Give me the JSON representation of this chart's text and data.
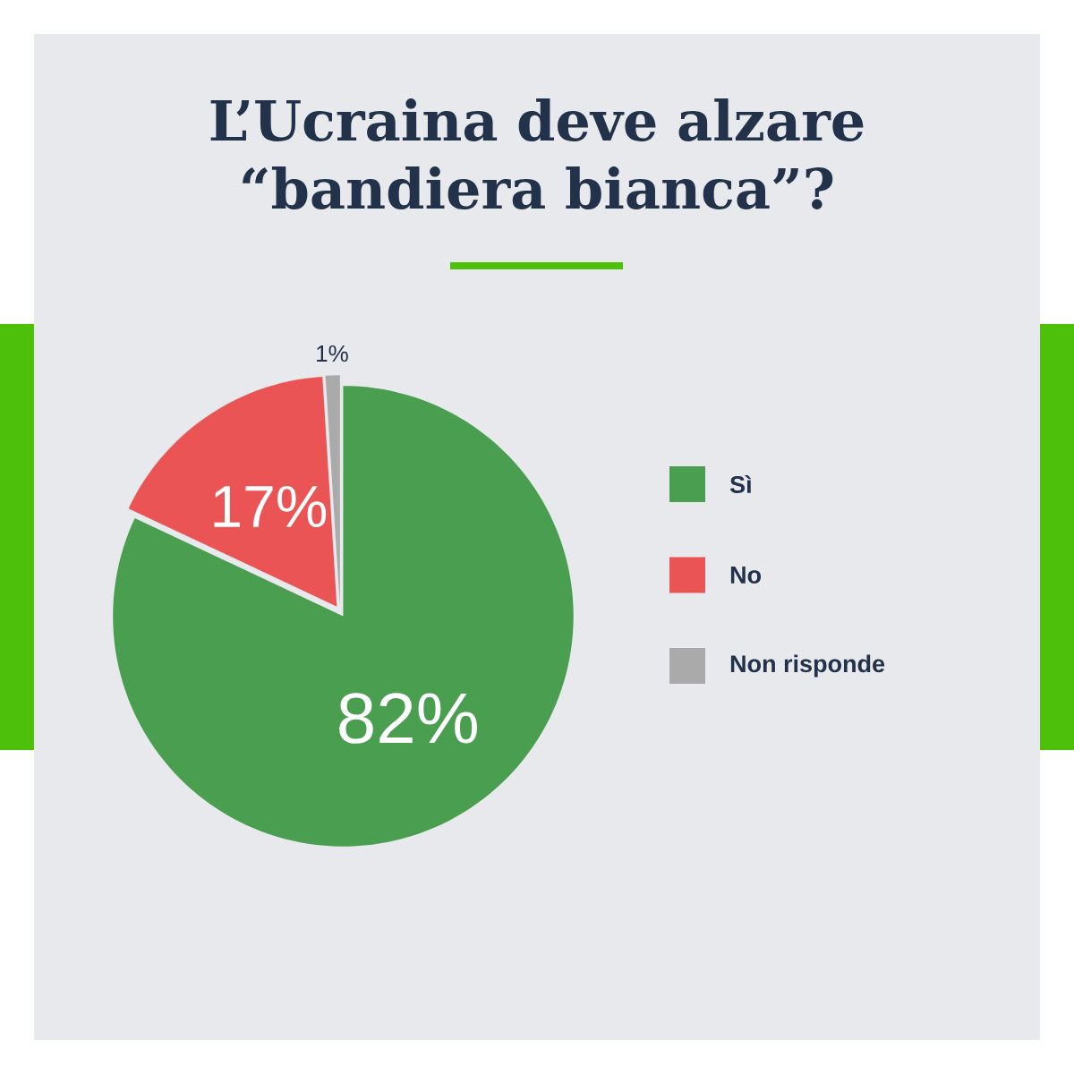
{
  "chart_data": {
    "type": "pie",
    "title": "L’Ucraina deve alzare “bandiera bianca”?",
    "categories": [
      "Sì",
      "No",
      "Non risponde"
    ],
    "values": [
      82,
      17,
      1
    ],
    "colors": [
      "#4a9e50",
      "#eb5454",
      "#aaaaaa"
    ],
    "value_labels": [
      "82%",
      "17%",
      "1%"
    ],
    "legend": "right"
  }
}
